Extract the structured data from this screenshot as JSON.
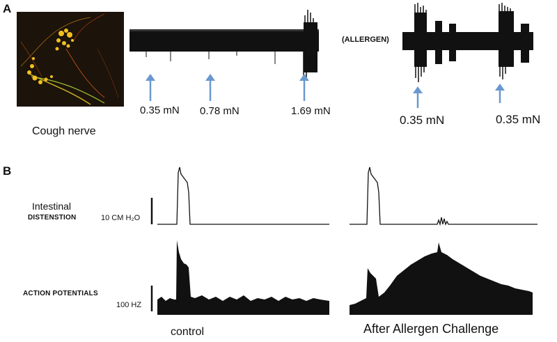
{
  "panel_a": {
    "letter": "A",
    "image_caption": "Cough nerve",
    "allergen_label": "(ALLERGEN)",
    "stimuli_before": [
      "0.35 mN",
      "0.78 mN",
      "1.69 mN"
    ],
    "stimuli_after": [
      "0.35 mN",
      "0.35 mN"
    ]
  },
  "panel_b": {
    "letter": "B",
    "row1_label_line1": "Intestinal",
    "row1_label_line2": "DISTENSTION",
    "row1_scale": "10 CM H₂O",
    "row2_label": "ACTION POTENTIALS",
    "row2_scale": "100 HZ",
    "caption_left": "control",
    "caption_right": "After Allergen Challenge"
  },
  "colors": {
    "trace": "#111111",
    "arrow": "#6a98cf",
    "nerve_bg": "#1c130a"
  }
}
